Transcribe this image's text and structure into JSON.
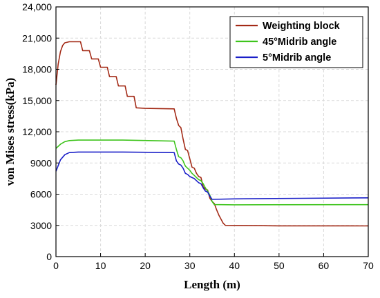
{
  "chart_data": {
    "type": "line",
    "title": "",
    "xlabel": "Length (m)",
    "ylabel": "von Mises stress(kPa)",
    "xlim": [
      0,
      70
    ],
    "ylim": [
      0,
      24000
    ],
    "grid": true,
    "legend_position": "top-right",
    "x_ticks": [
      0,
      10,
      20,
      30,
      40,
      50,
      60,
      70
    ],
    "x_tick_labels": [
      "0",
      "10",
      "20",
      "30",
      "40",
      "50",
      "60",
      "70"
    ],
    "y_ticks": [
      0,
      3000,
      6000,
      9000,
      12000,
      15000,
      18000,
      21000,
      24000
    ],
    "y_tick_labels": [
      "0",
      "3000",
      "6000",
      "9000",
      "12,000",
      "15,000",
      "18,000",
      "21,000",
      "24,000"
    ],
    "series": [
      {
        "name": "Weighting block",
        "color": "#a32a16",
        "points": [
          [
            0,
            16500
          ],
          [
            0.5,
            18500
          ],
          [
            1,
            19700
          ],
          [
            1.5,
            20300
          ],
          [
            2,
            20550
          ],
          [
            3,
            20650
          ],
          [
            5.5,
            20650
          ],
          [
            6,
            19800
          ],
          [
            7.5,
            19800
          ],
          [
            8,
            19000
          ],
          [
            9.5,
            19000
          ],
          [
            10,
            18200
          ],
          [
            11.5,
            18200
          ],
          [
            12,
            17300
          ],
          [
            13.5,
            17300
          ],
          [
            14,
            16400
          ],
          [
            15.5,
            16400
          ],
          [
            16,
            15400
          ],
          [
            17.5,
            15400
          ],
          [
            18,
            14300
          ],
          [
            20,
            14250
          ],
          [
            26.5,
            14200
          ],
          [
            27,
            13300
          ],
          [
            27.5,
            12600
          ],
          [
            28,
            12400
          ],
          [
            28.5,
            11300
          ],
          [
            29,
            10300
          ],
          [
            29.5,
            10200
          ],
          [
            30,
            9400
          ],
          [
            30.5,
            8600
          ],
          [
            31,
            8500
          ],
          [
            31.5,
            8000
          ],
          [
            32,
            7700
          ],
          [
            32.5,
            7600
          ],
          [
            33,
            6700
          ],
          [
            33.5,
            6500
          ],
          [
            34,
            6400
          ],
          [
            34.5,
            5600
          ],
          [
            35,
            5300
          ],
          [
            35.5,
            5100
          ],
          [
            36,
            4500
          ],
          [
            36.5,
            4000
          ],
          [
            37,
            3600
          ],
          [
            37.5,
            3200
          ],
          [
            38,
            3000
          ],
          [
            50,
            2960
          ],
          [
            70,
            2950
          ]
        ]
      },
      {
        "name": "45°Midrib angle",
        "color": "#3ec41c",
        "points": [
          [
            0,
            10400
          ],
          [
            1,
            10800
          ],
          [
            2,
            11050
          ],
          [
            3,
            11150
          ],
          [
            5,
            11200
          ],
          [
            15,
            11200
          ],
          [
            26.5,
            11100
          ],
          [
            27,
            10300
          ],
          [
            27.5,
            9600
          ],
          [
            28,
            9500
          ],
          [
            28.5,
            9200
          ],
          [
            29,
            8700
          ],
          [
            29.5,
            8500
          ],
          [
            30,
            8300
          ],
          [
            30.5,
            8000
          ],
          [
            31,
            7800
          ],
          [
            31.5,
            7600
          ],
          [
            32,
            7400
          ],
          [
            32.5,
            7300
          ],
          [
            33,
            7000
          ],
          [
            33.5,
            6600
          ],
          [
            34,
            6300
          ],
          [
            34.5,
            5900
          ],
          [
            35,
            5300
          ],
          [
            35.5,
            5000
          ],
          [
            40,
            4980
          ],
          [
            70,
            4990
          ]
        ]
      },
      {
        "name": "5°Midrib angle",
        "color": "#1a1fc8",
        "points": [
          [
            0,
            8200
          ],
          [
            1,
            9300
          ],
          [
            2,
            9800
          ],
          [
            3,
            10000
          ],
          [
            5,
            10050
          ],
          [
            15,
            10050
          ],
          [
            26.5,
            10000
          ],
          [
            27,
            9200
          ],
          [
            27.5,
            8900
          ],
          [
            28,
            8800
          ],
          [
            28.5,
            8500
          ],
          [
            29,
            8000
          ],
          [
            29.5,
            7900
          ],
          [
            30,
            7700
          ],
          [
            30.5,
            7600
          ],
          [
            31,
            7500
          ],
          [
            31.5,
            7300
          ],
          [
            32,
            7100
          ],
          [
            32.5,
            7000
          ],
          [
            33,
            6600
          ],
          [
            33.5,
            6300
          ],
          [
            34,
            6200
          ],
          [
            34.5,
            5800
          ],
          [
            35,
            5500
          ],
          [
            40,
            5550
          ],
          [
            55,
            5600
          ],
          [
            70,
            5650
          ]
        ]
      }
    ]
  }
}
